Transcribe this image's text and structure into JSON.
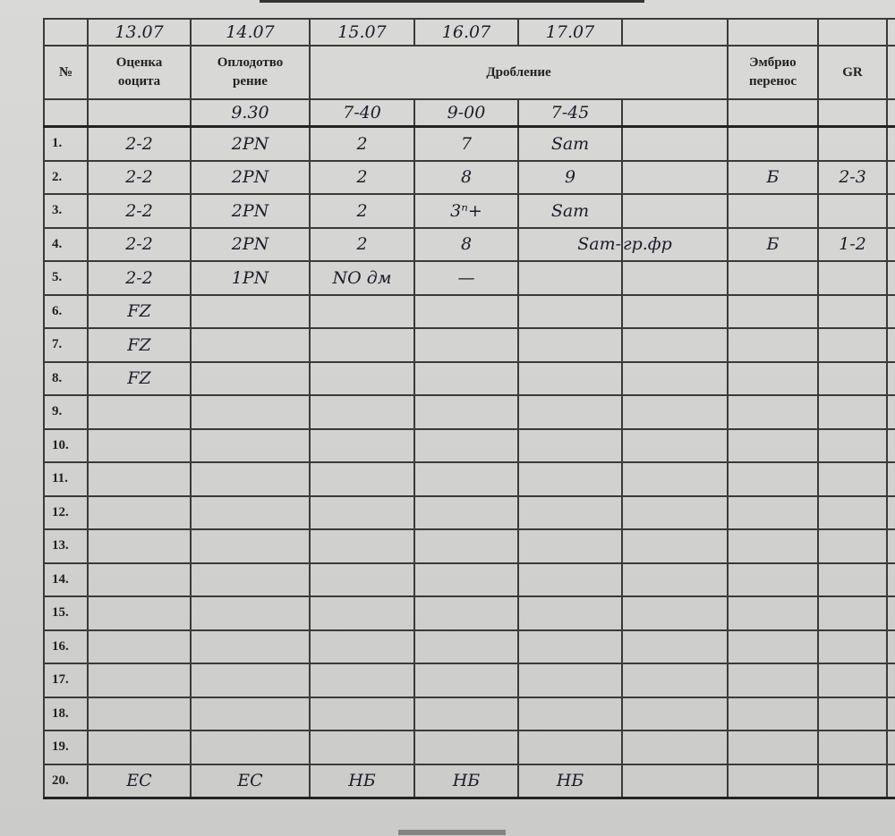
{
  "header": {
    "number": "№",
    "oocyte": "Оценка ооцита",
    "fertilization": "Оплодотво рение",
    "cleavage": "Дробление",
    "transfer": "Эмбрио перенос",
    "gr": "GR"
  },
  "dates": [
    "13.07",
    "14.07",
    "15.07",
    "16.07",
    "17.07"
  ],
  "times": [
    "",
    "9.30",
    "7-40",
    "9-00",
    "7-45"
  ],
  "rows": [
    {
      "n": "1.",
      "cells": [
        "2-2",
        "2PN",
        "2",
        "7",
        "Sam",
        "",
        "",
        ""
      ]
    },
    {
      "n": "2.",
      "cells": [
        "2-2",
        "2PN",
        "2",
        "8",
        "9",
        "",
        "Б",
        "2-3"
      ]
    },
    {
      "n": "3.",
      "cells": [
        "2-2",
        "2PN",
        "2",
        "3ⁿ+",
        "Sam",
        "",
        "",
        ""
      ]
    },
    {
      "n": "4.",
      "cells": [
        "2-2",
        "2PN",
        "2",
        "8",
        "Sam-",
        "гр.фр",
        "Б",
        "1-2"
      ]
    },
    {
      "n": "5.",
      "cells": [
        "2-2",
        "1PN",
        "NO дм",
        "—",
        "",
        "",
        "",
        ""
      ]
    },
    {
      "n": "6.",
      "cells": [
        "FZ",
        "",
        "",
        "",
        "",
        "",
        "",
        ""
      ]
    },
    {
      "n": "7.",
      "cells": [
        "FZ",
        "",
        "",
        "",
        "",
        "",
        "",
        ""
      ]
    },
    {
      "n": "8.",
      "cells": [
        "FZ",
        "",
        "",
        "",
        "",
        "",
        "",
        ""
      ]
    },
    {
      "n": "9.",
      "cells": [
        "",
        "",
        "",
        "",
        "",
        "",
        "",
        ""
      ]
    },
    {
      "n": "10.",
      "cells": [
        "",
        "",
        "",
        "",
        "",
        "",
        "",
        ""
      ]
    },
    {
      "n": "11.",
      "cells": [
        "",
        "",
        "",
        "",
        "",
        "",
        "",
        ""
      ]
    },
    {
      "n": "12.",
      "cells": [
        "",
        "",
        "",
        "",
        "",
        "",
        "",
        ""
      ]
    },
    {
      "n": "13.",
      "cells": [
        "",
        "",
        "",
        "",
        "",
        "",
        "",
        ""
      ]
    },
    {
      "n": "14.",
      "cells": [
        "",
        "",
        "",
        "",
        "",
        "",
        "",
        ""
      ]
    },
    {
      "n": "15.",
      "cells": [
        "",
        "",
        "",
        "",
        "",
        "",
        "",
        ""
      ]
    },
    {
      "n": "16.",
      "cells": [
        "",
        "",
        "",
        "",
        "",
        "",
        "",
        ""
      ]
    },
    {
      "n": "17.",
      "cells": [
        "",
        "",
        "",
        "",
        "",
        "",
        "",
        ""
      ]
    },
    {
      "n": "18.",
      "cells": [
        "",
        "",
        "",
        "",
        "",
        "",
        "",
        ""
      ]
    },
    {
      "n": "19.",
      "cells": [
        "",
        "",
        "",
        "",
        "",
        "",
        "",
        ""
      ]
    },
    {
      "n": "20.",
      "cells": [
        "ЕС",
        "ЕС",
        "НБ",
        "НБ",
        "НБ",
        "",
        "",
        ""
      ]
    }
  ]
}
